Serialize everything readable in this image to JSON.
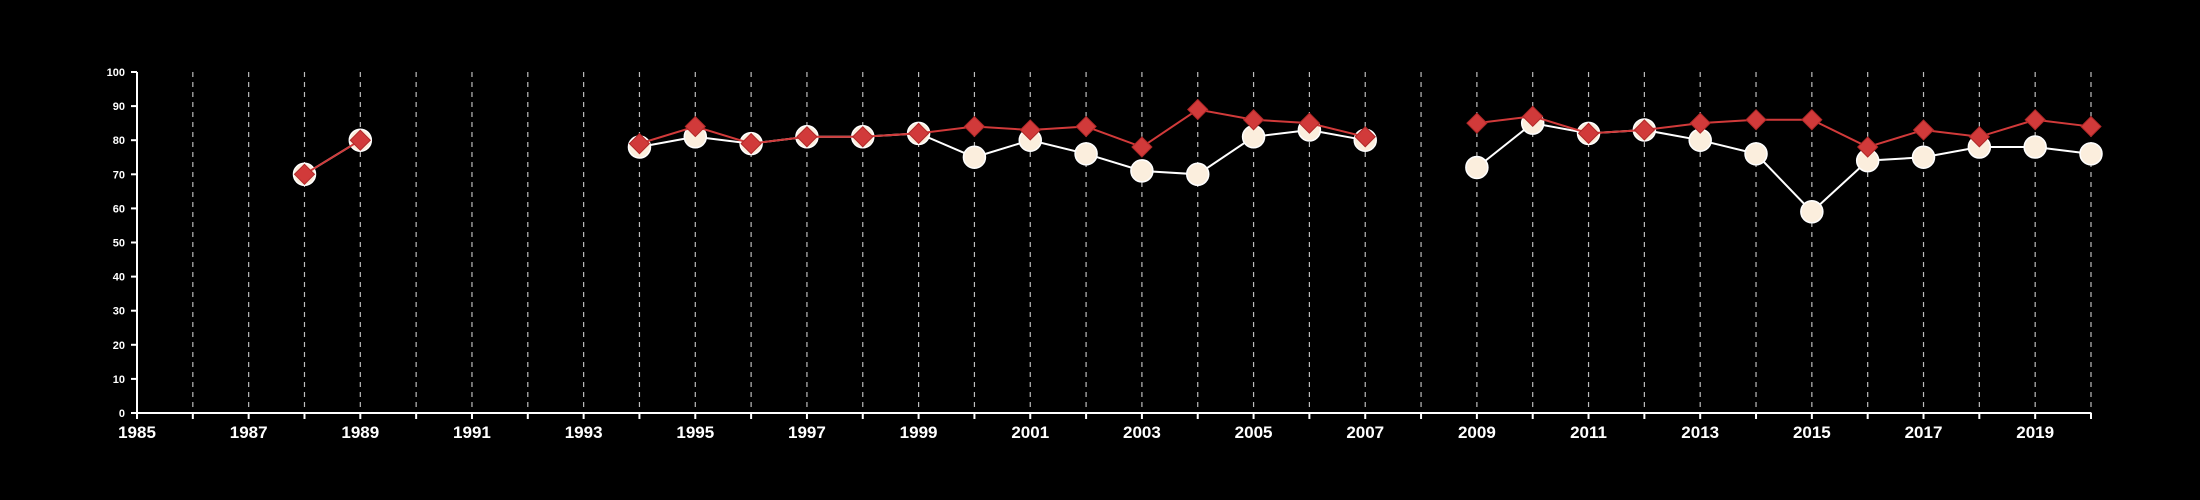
{
  "chart_data": {
    "type": "line",
    "title": "",
    "xlabel": "",
    "ylabel": "",
    "xlim": [
      1985,
      2020
    ],
    "ylim": [
      0,
      100
    ],
    "x_tick_labels": [
      "1985",
      "1987",
      "1989",
      "1991",
      "1993",
      "1995",
      "1997",
      "1999",
      "2001",
      "2003",
      "2005",
      "2007",
      "2009",
      "2011",
      "2013",
      "2015",
      "2017",
      "2019"
    ],
    "y_tick_labels": [
      "0",
      "10",
      "20",
      "30",
      "40",
      "50",
      "60",
      "70",
      "80",
      "90",
      "100"
    ],
    "grid": "vertical dashed lines at every year",
    "legend": "none",
    "series": [
      {
        "marker": "circle",
        "color": "#fbeedd",
        "line_color": "#ffffff",
        "points": [
          [
            1988,
            70
          ],
          [
            1989,
            80
          ],
          [
            1994,
            78
          ],
          [
            1995,
            81
          ],
          [
            1996,
            79
          ],
          [
            1997,
            81
          ],
          [
            1998,
            81
          ],
          [
            1999,
            82
          ],
          [
            2000,
            75
          ],
          [
            2001,
            80
          ],
          [
            2002,
            76
          ],
          [
            2003,
            71
          ],
          [
            2004,
            70
          ],
          [
            2005,
            81
          ],
          [
            2006,
            83
          ],
          [
            2007,
            80
          ],
          [
            2009,
            72
          ],
          [
            2010,
            85
          ],
          [
            2011,
            82
          ],
          [
            2012,
            83
          ],
          [
            2013,
            80
          ],
          [
            2014,
            76
          ],
          [
            2015,
            59
          ],
          [
            2016,
            74
          ],
          [
            2017,
            75
          ],
          [
            2018,
            78
          ],
          [
            2019,
            78
          ],
          [
            2020,
            76
          ]
        ]
      },
      {
        "marker": "diamond",
        "color": "#d13a3a",
        "line_color": "#d13a3a",
        "points": [
          [
            1988,
            70
          ],
          [
            1989,
            80
          ],
          [
            1994,
            79
          ],
          [
            1995,
            84
          ],
          [
            1996,
            79
          ],
          [
            1997,
            81
          ],
          [
            1998,
            81
          ],
          [
            1999,
            82
          ],
          [
            2000,
            84
          ],
          [
            2001,
            83
          ],
          [
            2002,
            84
          ],
          [
            2003,
            78
          ],
          [
            2004,
            89
          ],
          [
            2005,
            86
          ],
          [
            2006,
            85
          ],
          [
            2007,
            81
          ],
          [
            2009,
            85
          ],
          [
            2010,
            87
          ],
          [
            2011,
            82
          ],
          [
            2012,
            83
          ],
          [
            2013,
            85
          ],
          [
            2014,
            86
          ],
          [
            2015,
            86
          ],
          [
            2016,
            78
          ],
          [
            2017,
            83
          ],
          [
            2018,
            81
          ],
          [
            2019,
            86
          ],
          [
            2020,
            84
          ]
        ]
      }
    ]
  }
}
